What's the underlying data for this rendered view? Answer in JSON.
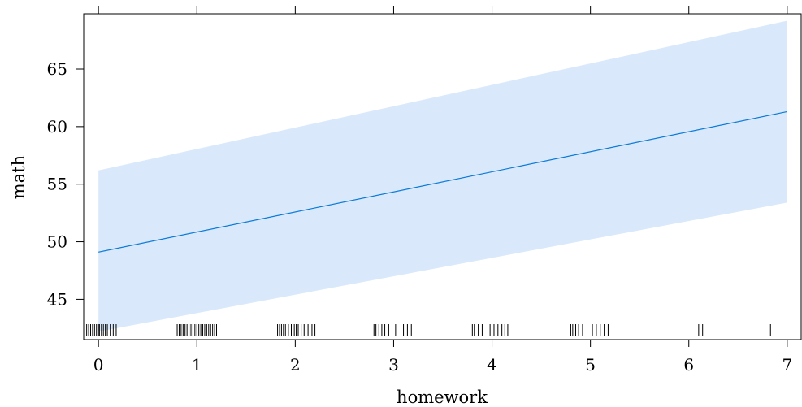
{
  "chart_data": {
    "type": "line",
    "title": "",
    "xlabel": "homework",
    "ylabel": "math",
    "xlim": [
      -0.15,
      7.15
    ],
    "ylim": [
      41.5,
      69.8
    ],
    "x_ticks": [
      0,
      1,
      2,
      3,
      4,
      5,
      6,
      7
    ],
    "y_ticks": [
      45,
      50,
      55,
      60,
      65
    ],
    "x_tick_labels": [
      "0",
      "1",
      "2",
      "3",
      "4",
      "5",
      "6",
      "7"
    ],
    "y_tick_labels": [
      "45",
      "50",
      "55",
      "60",
      "65"
    ],
    "grid": false,
    "legend": "none",
    "series": [
      {
        "x": [
          0,
          7
        ],
        "values": [
          49.1,
          61.3
        ],
        "lower": [
          42.2,
          53.4
        ],
        "upper": [
          56.2,
          69.2
        ]
      }
    ],
    "rug_x": [
      -0.12,
      -0.1,
      -0.08,
      -0.06,
      -0.04,
      -0.02,
      0.0,
      0.01,
      0.03,
      0.05,
      0.07,
      0.09,
      0.12,
      0.15,
      0.18,
      0.8,
      0.82,
      0.84,
      0.86,
      0.88,
      0.9,
      0.92,
      0.94,
      0.96,
      0.98,
      1.0,
      1.02,
      1.04,
      1.06,
      1.08,
      1.1,
      1.12,
      1.14,
      1.16,
      1.18,
      1.2,
      1.82,
      1.84,
      1.86,
      1.88,
      1.9,
      1.93,
      1.96,
      1.99,
      2.01,
      2.03,
      2.06,
      2.09,
      2.13,
      2.17,
      2.2,
      2.8,
      2.82,
      2.85,
      2.88,
      2.91,
      2.95,
      3.02,
      3.1,
      3.14,
      3.18,
      3.8,
      3.82,
      3.86,
      3.9,
      3.98,
      4.02,
      4.06,
      4.1,
      4.13,
      4.16,
      4.8,
      4.82,
      4.85,
      4.88,
      4.92,
      5.02,
      5.06,
      5.1,
      5.14,
      5.18,
      6.1,
      6.14,
      6.83
    ],
    "colors": {
      "line": "#0b7ad8",
      "band": "#d9e9fb",
      "axis": "#000000"
    }
  }
}
